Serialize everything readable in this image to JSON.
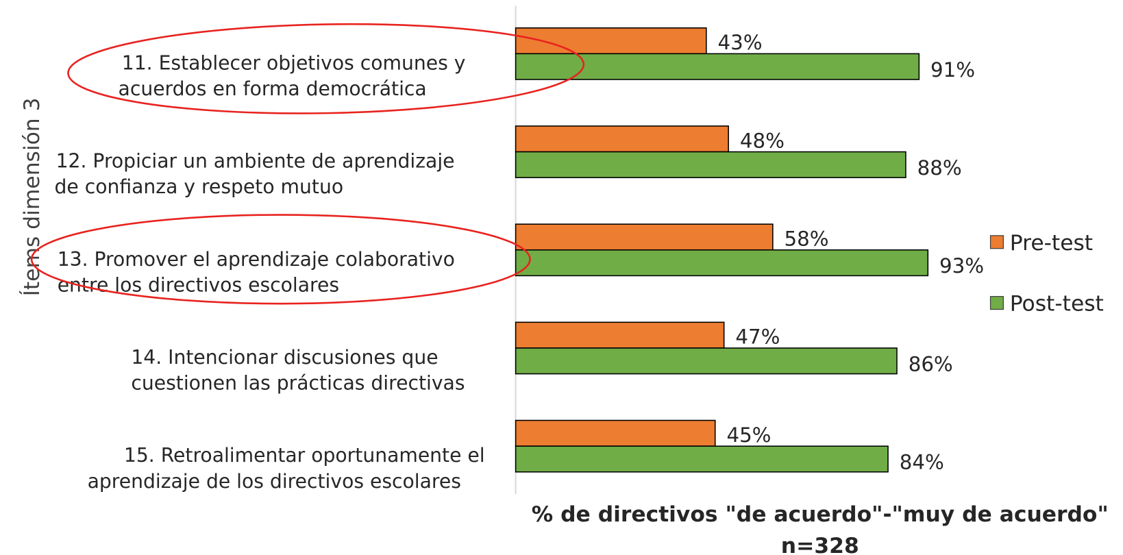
{
  "chart_data": {
    "type": "barh",
    "categories": [
      [
        "11. Establecer objetivos comunes y",
        "acuerdos en forma democrática"
      ],
      [
        "12. Propiciar un ambiente de aprendizaje",
        "de confianza y respeto mutuo"
      ],
      [
        "13. Promover el aprendizaje colaborativo",
        "entre los directivos escolares"
      ],
      [
        "14. Intencionar discusiones que",
        "cuestionen las prácticas directivas"
      ],
      [
        "15. Retroalimentar oportunamente el",
        "aprendizaje de los directivos escolares"
      ]
    ],
    "series": [
      {
        "name": "Pre-test",
        "color": "#ed7d31",
        "values": [
          43,
          48,
          58,
          47,
          45
        ],
        "value_labels": [
          "43%",
          "48%",
          "58%",
          "47%",
          "45%"
        ]
      },
      {
        "name": "Post-test",
        "color": "#70ad47",
        "values": [
          91,
          88,
          93,
          86,
          84
        ],
        "value_labels": [
          "91%",
          "88%",
          "93%",
          "86%",
          "84%"
        ]
      }
    ],
    "xlim": [
      0,
      100
    ],
    "ylabel": "Ítems dimensión 3",
    "xlabel": [
      "% de directivos \"de acuerdo\"-\"muy de acuerdo\"",
      "n=328"
    ],
    "legend": "right"
  }
}
